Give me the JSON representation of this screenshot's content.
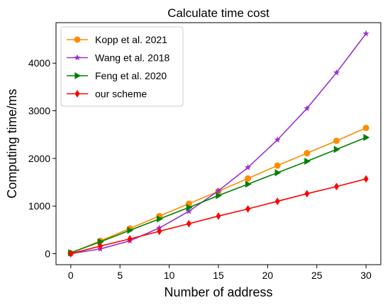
{
  "chart_data": {
    "type": "line",
    "title": "Calculate time cost",
    "xlabel": "Number of address",
    "ylabel": "Computing time/ms",
    "xlim": [
      -1.5,
      31.5
    ],
    "ylim": [
      -230,
      4850
    ],
    "xticks": [
      0,
      5,
      10,
      15,
      20,
      25,
      30
    ],
    "yticks": [
      0,
      1000,
      2000,
      3000,
      4000
    ],
    "legend_position": "upper-left",
    "x": [
      0,
      3,
      6,
      9,
      12,
      15,
      18,
      21,
      24,
      27,
      30
    ],
    "series": [
      {
        "name": "Kopp et al. 2021",
        "color": "#ff8c00",
        "marker": "circle",
        "values": [
          10,
          270,
          530,
          790,
          1050,
          1310,
          1580,
          1850,
          2110,
          2370,
          2640
        ]
      },
      {
        "name": "Wang et al. 2018",
        "color": "#9932cc",
        "marker": "star",
        "values": [
          0,
          100,
          270,
          540,
          890,
          1320,
          1810,
          2390,
          3050,
          3800,
          4620
        ]
      },
      {
        "name": "Feng et al. 2020",
        "color": "#008000",
        "marker": "triangle-right",
        "values": [
          20,
          250,
          490,
          730,
          970,
          1220,
          1460,
          1700,
          1940,
          2190,
          2440
        ]
      },
      {
        "name": "our scheme",
        "color": "#ff0000",
        "marker": "diamond",
        "values": [
          0,
          160,
          310,
          470,
          630,
          790,
          940,
          1100,
          1260,
          1410,
          1570
        ]
      }
    ]
  }
}
